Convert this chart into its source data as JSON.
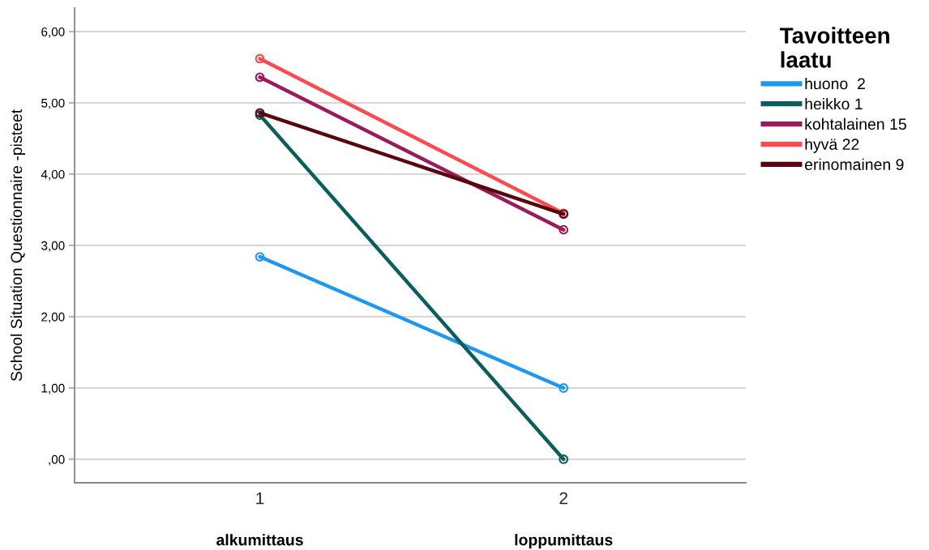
{
  "chart_data": {
    "type": "line",
    "ylabel": "School Situation Questionnaire -pisteet",
    "categories": [
      "1",
      "2"
    ],
    "ylim": [
      -0.33,
      6.33
    ],
    "yticks": [
      {
        "value": 0,
        "label": ",00"
      },
      {
        "value": 1,
        "label": "1,00"
      },
      {
        "value": 2,
        "label": "2,00"
      },
      {
        "value": 3,
        "label": "3,00"
      },
      {
        "value": 4,
        "label": "4,00"
      },
      {
        "value": 5,
        "label": "5,00"
      },
      {
        "value": 6,
        "label": "6,00"
      }
    ],
    "grid": "y",
    "legend": "right",
    "marker": "circle",
    "line_style": "solid",
    "legend_title": "Tavoitteen\nlaatu",
    "annotations": [
      "alkumittaus",
      "loppumittaus"
    ],
    "series": [
      {
        "name": "huono  2",
        "color": "#1f97f0",
        "values": [
          2.84,
          1.0
        ]
      },
      {
        "name": "heikko 1",
        "color": "#0b5e5a",
        "values": [
          4.83,
          0.0
        ]
      },
      {
        "name": "kohtalainen 15",
        "color": "#9a1b5a",
        "values": [
          5.36,
          3.22
        ]
      },
      {
        "name": "hyvä 22",
        "color": "#fb4b4f",
        "values": [
          5.62,
          3.45
        ]
      },
      {
        "name": "erinomainen 9",
        "color": "#590510",
        "values": [
          4.86,
          3.44
        ]
      }
    ]
  }
}
